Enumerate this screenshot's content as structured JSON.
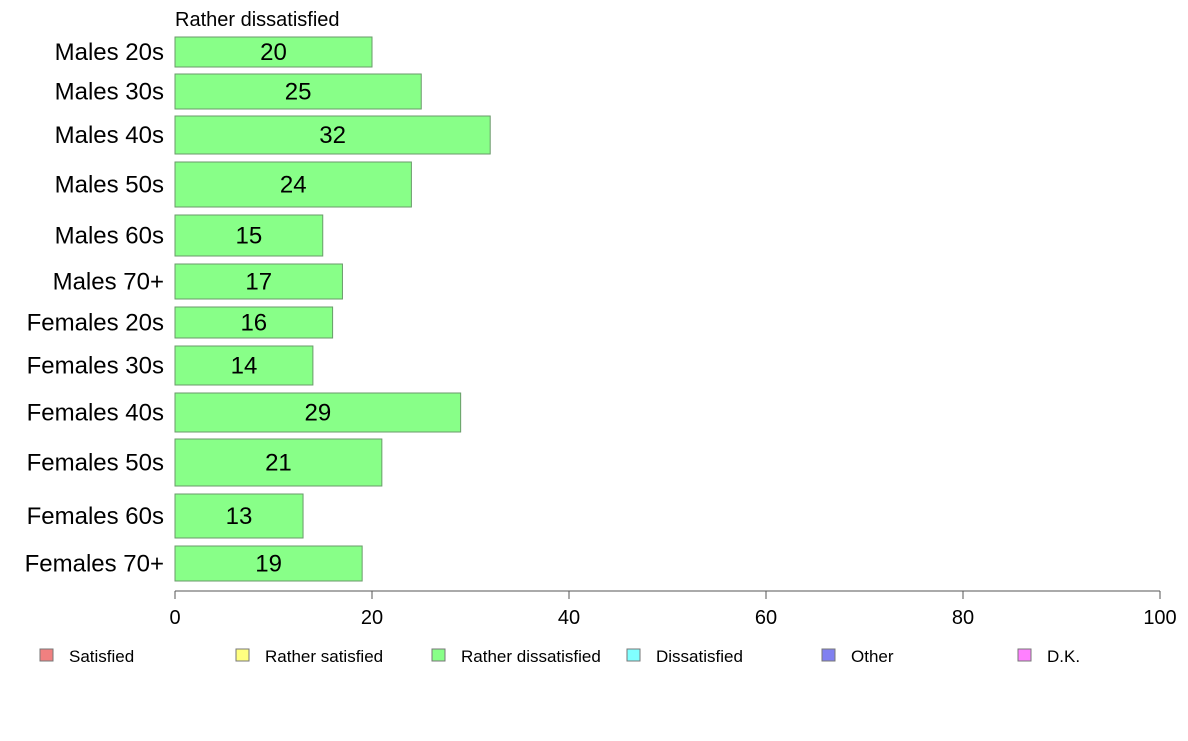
{
  "chart_data": {
    "type": "bar",
    "orientation": "horizontal",
    "title": "Rather dissatisfied",
    "categories": [
      "Males 20s",
      "Males 30s",
      "Males 40s",
      "Males 50s",
      "Males 60s",
      "Males 70+",
      "Females 20s",
      "Females 30s",
      "Females 40s",
      "Females 50s",
      "Females 60s",
      "Females 70+"
    ],
    "series": [
      {
        "name": "Rather dissatisfied",
        "color": "#88ff88",
        "values": [
          20,
          25,
          32,
          24,
          15,
          17,
          16,
          14,
          29,
          21,
          13,
          19
        ]
      }
    ],
    "xlim": [
      0,
      100
    ],
    "xticks": [
      0,
      20,
      40,
      60,
      80,
      100
    ],
    "grid": false,
    "legend": {
      "placement": "bottom",
      "entries": [
        {
          "label": "Satisfied",
          "color": "#f08080"
        },
        {
          "label": "Rather satisfied",
          "color": "#ffff80"
        },
        {
          "label": "Rather dissatisfied",
          "color": "#88ff88"
        },
        {
          "label": "Dissatisfied",
          "color": "#80ffff"
        },
        {
          "label": "Other",
          "color": "#8080f0"
        },
        {
          "label": "D.K.",
          "color": "#ff80ff"
        }
      ]
    }
  }
}
